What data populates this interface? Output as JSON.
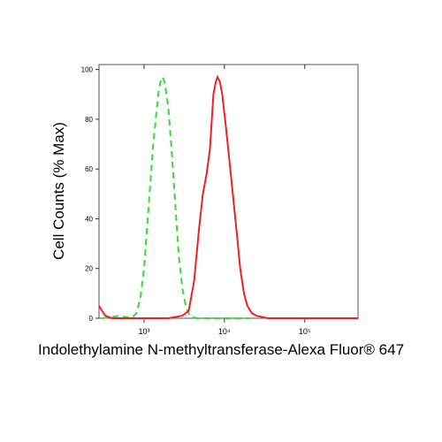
{
  "chart_data": {
    "type": "line",
    "xlabel": "Indolethylamine N-methyltransferase-Alexa Fluor® 647",
    "ylabel": "Cell Counts (% Max)",
    "xscale": "log",
    "xlim": [
      275,
      460000
    ],
    "ylim": [
      0,
      102
    ],
    "xticks": [
      {
        "value": 1000,
        "label": "10³"
      },
      {
        "value": 10000,
        "label": "10⁴"
      },
      {
        "value": 100000,
        "label": "10⁵"
      }
    ],
    "yticks": [
      0,
      20,
      40,
      60,
      80,
      100
    ],
    "series": [
      {
        "color": "#33dd33",
        "dash": true,
        "x": [
          300,
          500,
          700,
          800,
          900,
          1000,
          1100,
          1200,
          1300,
          1400,
          1500,
          1600,
          1700,
          1800,
          2000,
          2200,
          2400,
          2700,
          3000,
          3300,
          3700,
          4500,
          6000,
          10000,
          20000
        ],
        "values": [
          0,
          1,
          0,
          2,
          8,
          20,
          38,
          55,
          70,
          80,
          90,
          95,
          97,
          95,
          85,
          68,
          50,
          25,
          12,
          5,
          1,
          0,
          0,
          0,
          0
        ]
      },
      {
        "color": "#ee2222",
        "dash": false,
        "x": [
          275,
          300,
          330,
          400,
          1000,
          2000,
          3000,
          3600,
          4200,
          4800,
          5400,
          6000,
          6600,
          7300,
          7800,
          8200,
          8800,
          9400,
          10200,
          11000,
          12000,
          13200,
          14500,
          15700,
          17500,
          19300,
          22000,
          25000,
          35000,
          100000,
          460000
        ],
        "values": [
          5,
          3,
          1,
          0,
          0,
          0,
          1,
          3,
          15,
          35,
          50,
          58,
          68,
          90,
          95,
          97,
          95,
          90,
          80,
          70,
          58,
          45,
          32,
          20,
          10,
          5,
          2,
          1,
          0,
          0,
          0
        ]
      }
    ]
  }
}
